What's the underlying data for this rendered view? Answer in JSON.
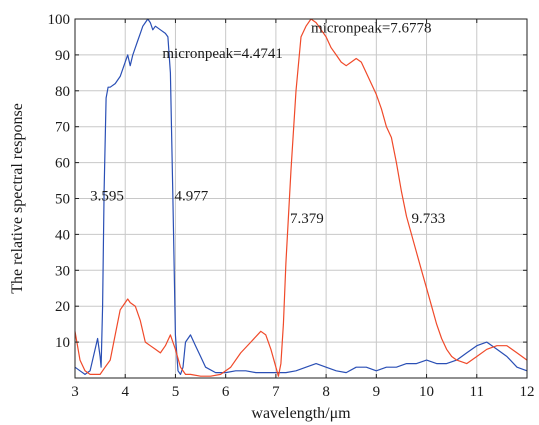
{
  "chart_data": {
    "type": "line",
    "title": "",
    "xlabel": "wavelength/μm",
    "ylabel": "The relative spectral response",
    "xlim": [
      3,
      12
    ],
    "ylim": [
      0,
      100
    ],
    "xticks": [
      3,
      4,
      5,
      6,
      7,
      8,
      9,
      10,
      11,
      12
    ],
    "yticks": [
      10,
      20,
      30,
      40,
      50,
      60,
      70,
      80,
      90,
      100
    ],
    "grid": true,
    "series": [
      {
        "color": "#2a4fb5",
        "x": [
          3.0,
          3.1,
          3.2,
          3.3,
          3.4,
          3.45,
          3.5,
          3.52,
          3.55,
          3.58,
          3.62,
          3.66,
          3.7,
          3.8,
          3.9,
          4.0,
          4.05,
          4.1,
          4.15,
          4.2,
          4.25,
          4.3,
          4.35,
          4.4,
          4.45,
          4.5,
          4.55,
          4.6,
          4.7,
          4.8,
          4.85,
          4.9,
          4.95,
          5.0,
          5.05,
          5.1,
          5.15,
          5.2,
          5.3,
          5.4,
          5.5,
          5.6,
          5.8,
          6.0,
          6.2,
          6.4,
          6.6,
          6.8,
          7.0,
          7.2,
          7.4,
          7.6,
          7.8,
          8.0,
          8.2,
          8.4,
          8.6,
          8.8,
          9.0,
          9.2,
          9.4,
          9.6,
          9.8,
          10.0,
          10.2,
          10.4,
          10.6,
          10.8,
          11.0,
          11.2,
          11.4,
          11.6,
          11.8,
          12.0
        ],
        "y": [
          3,
          2,
          1,
          2,
          8,
          11,
          6,
          3,
          20,
          52,
          78,
          81,
          81,
          82,
          84,
          88,
          90,
          87,
          90,
          92,
          94,
          96,
          98,
          99,
          100,
          99,
          97,
          98,
          97,
          96,
          95,
          85,
          50,
          12,
          2,
          1,
          3,
          10,
          12,
          9,
          6,
          3,
          1.5,
          1.5,
          2,
          2,
          1.5,
          1.5,
          1.5,
          1.5,
          2,
          3,
          4,
          3,
          2,
          1.5,
          3,
          3,
          2,
          3,
          3,
          4,
          4,
          5,
          4,
          4,
          5,
          7,
          9,
          10,
          8,
          6,
          3,
          2
        ]
      },
      {
        "color": "#f04a2a",
        "x": [
          3.0,
          3.1,
          3.2,
          3.3,
          3.4,
          3.5,
          3.6,
          3.7,
          3.8,
          3.9,
          4.0,
          4.05,
          4.1,
          4.2,
          4.3,
          4.4,
          4.5,
          4.6,
          4.7,
          4.8,
          4.9,
          5.0,
          5.1,
          5.2,
          5.3,
          5.5,
          5.7,
          5.9,
          6.1,
          6.3,
          6.5,
          6.7,
          6.8,
          6.9,
          7.0,
          7.05,
          7.1,
          7.15,
          7.2,
          7.3,
          7.4,
          7.5,
          7.6,
          7.7,
          7.8,
          7.9,
          8.0,
          8.1,
          8.2,
          8.3,
          8.4,
          8.5,
          8.6,
          8.7,
          8.8,
          8.9,
          9.0,
          9.1,
          9.2,
          9.3,
          9.4,
          9.5,
          9.6,
          9.7,
          9.8,
          9.9,
          10.0,
          10.1,
          10.2,
          10.3,
          10.4,
          10.5,
          10.6,
          10.8,
          11.0,
          11.2,
          11.4,
          11.6,
          11.8,
          12.0
        ],
        "y": [
          13,
          5,
          2,
          1,
          1,
          1,
          3,
          5,
          12,
          19,
          21,
          22,
          21,
          20,
          16,
          10,
          9,
          8,
          7,
          9,
          12,
          8,
          3,
          1,
          1,
          0.5,
          0.5,
          1,
          3,
          7,
          10,
          13,
          12,
          8,
          3,
          0.5,
          4,
          15,
          32,
          58,
          80,
          95,
          98,
          100,
          99,
          97,
          95,
          92,
          90,
          88,
          87,
          88,
          89,
          88,
          85,
          82,
          79,
          75,
          70,
          67,
          60,
          52,
          45,
          40,
          35,
          30,
          25,
          20,
          15,
          11,
          8,
          6,
          5,
          4,
          6,
          8,
          9,
          9,
          7,
          5
        ]
      }
    ],
    "annotations": [
      {
        "text": "micronpeak=4.4741",
        "x": 4.74,
        "y": 89.2
      },
      {
        "text": "micronpeak=7.6778",
        "x": 7.7,
        "y": 96.2
      },
      {
        "text": "3.595",
        "x": 3.3,
        "y": 49.4
      },
      {
        "text": "4.977",
        "x": 4.98,
        "y": 49.4
      },
      {
        "text": "7.379",
        "x": 7.28,
        "y": 43.2
      },
      {
        "text": "9.733",
        "x": 9.7,
        "y": 43.2
      }
    ]
  }
}
